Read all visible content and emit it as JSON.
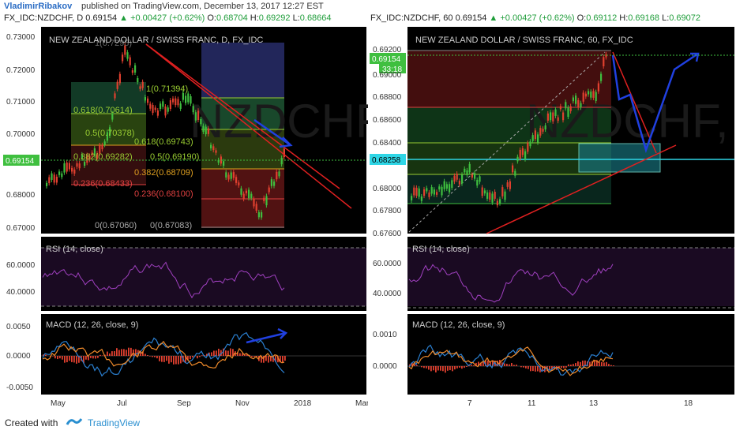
{
  "header": {
    "author": "VladimirRibakov",
    "published_text": "published on TradingView.com, December 13, 2017 12:27 EST"
  },
  "left": {
    "symbol": "FX_IDC:NZDCHF, D",
    "price": "0.69154",
    "change": "+0.00427 (+0.62%)",
    "open": "0.68704",
    "high": "0.69292",
    "low": "0.68664",
    "chart_title": "NEW ZEALAND DOLLAR / SWISS FRANC, D, FX_IDC",
    "price_ticks": [
      "0.73000",
      "0.72000",
      "0.71000",
      "0.70000",
      "0.69154",
      "0.68000",
      "0.67000"
    ],
    "fib_labels": [
      "1(0.71394)",
      "0.618(0.70614)",
      "0.5(0.70378)",
      "0.618(0.69743)",
      "0.382(0.69282)",
      "0.5(0.69190)",
      "0.382(0.68709)",
      "0.236(0.68433)",
      "0.236(0.68100)",
      "0(0.67060)",
      "0(0.67083)",
      "1(0.7295)"
    ],
    "rsi_label": "RSI (14, close)",
    "rsi_ticks": [
      "60.0000",
      "40.0000"
    ],
    "macd_label": "MACD (12, 26, close, 9)",
    "macd_ticks": [
      "0.0050",
      "0.0000",
      "-0.0050"
    ],
    "x_ticks": [
      "May",
      "Jul",
      "Sep",
      "Nov",
      "2018",
      "Mar"
    ],
    "watermark": "NZDCHF"
  },
  "right": {
    "symbol": "FX_IDC:NZDCHF, 60",
    "price": "0.69154",
    "change": "+0.00427 (+0.62%)",
    "open": "0.69112",
    "high": "0.69168",
    "low": "0.69072",
    "chart_title": "NEW ZEALAND DOLLAR / SWISS FRANC, 60, FX_IDC",
    "price_ticks": [
      "0.69200",
      "0.69154",
      "33:18",
      "0.69000",
      "0.68800",
      "0.68600",
      "0.68400",
      "0.68258",
      "0.68000",
      "0.67800",
      "0.67600"
    ],
    "rsi_label": "RSI (14, close)",
    "rsi_ticks": [
      "60.0000",
      "40.0000"
    ],
    "macd_label": "MACD (12, 26, close, 9)",
    "macd_ticks": [
      "0.0010",
      "0.0000"
    ],
    "x_ticks": [
      "7",
      "11",
      "13",
      "18"
    ],
    "watermark": "NZDCHF, 60"
  },
  "footer": {
    "created_with": "Created with",
    "brand": "TradingView"
  },
  "colors": {
    "up": "#3fbf3f",
    "down": "#e0402f",
    "accent": "#2a6cc4",
    "rsi": "#a040c0",
    "macd": "#2a7fd0",
    "signal": "#f08a2a",
    "bg": "#000000"
  }
}
